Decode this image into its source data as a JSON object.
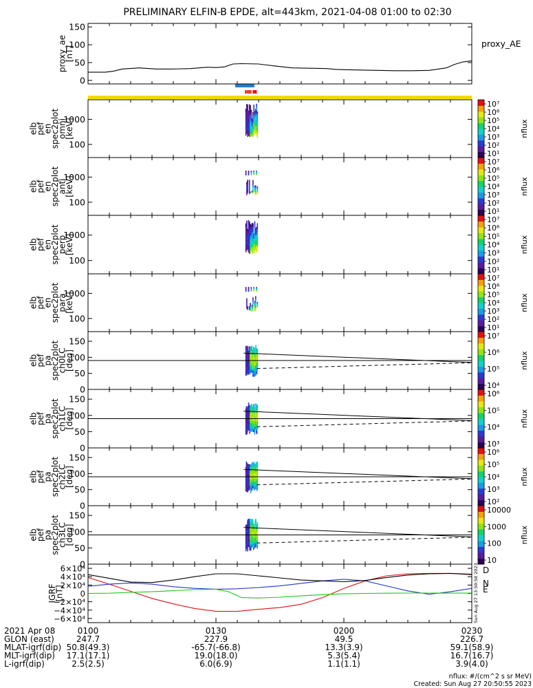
{
  "title": "PRELIMINARY ELFIN-B EPDE, alt=443km, 2021-04-08 01:00 to 02:30",
  "colors": {
    "yellow_bar": "#f5d800",
    "blue_bar": "#1e7fd6",
    "red_bar": "#ee1111",
    "grf_D": "#dd1111",
    "grf_N": "#2233cc",
    "grf_E": "#11cc11",
    "grf_mag": "#000000"
  },
  "colorscale": [
    "#2b005a",
    "#5a1b9a",
    "#2b3ad6",
    "#1a9be6",
    "#11d0d0",
    "#14d36a",
    "#8ee515",
    "#e5e812",
    "#f7a00a",
    "#e41010"
  ],
  "chart_data": [
    {
      "type": "line",
      "name": "proxy_ae",
      "ylabel": [
        "proxy_ae",
        "[nT]"
      ],
      "yticks": [
        "150",
        "100",
        "50",
        "0"
      ],
      "ylim": [
        0,
        150
      ],
      "series_label": "proxy_AE",
      "series": [
        {
          "name": "proxy_AE",
          "x": [
            0,
            4,
            6,
            8,
            12,
            16,
            20,
            24,
            26,
            28,
            30,
            32,
            34,
            36,
            40,
            44,
            48,
            52,
            56,
            58,
            60,
            64,
            68,
            72,
            76,
            80,
            84,
            86,
            88,
            90
          ],
          "y": [
            23,
            23,
            26,
            32,
            35,
            32,
            32,
            33,
            35,
            37,
            36,
            38,
            46,
            47,
            46,
            40,
            35,
            34,
            33,
            31,
            30,
            29,
            28,
            27,
            27,
            28,
            35,
            45,
            52,
            55
          ]
        }
      ]
    },
    {
      "type": "heatmap",
      "name": "omni",
      "ylabel": [
        "elb",
        "pef",
        "en",
        "spec2plot",
        "omni",
        "[keV]"
      ],
      "yticks": [
        "1000",
        "100"
      ],
      "cbar": {
        "ticks": [
          "10⁷",
          "10⁶",
          "10⁵",
          "10⁴",
          "10³",
          "10²",
          "10¹"
        ],
        "label": "nflux"
      }
    },
    {
      "type": "heatmap",
      "name": "anti",
      "ylabel": [
        "elb",
        "pef",
        "en",
        "spec2plot",
        "anti",
        "[keV]"
      ],
      "yticks": [
        "1000",
        "100"
      ],
      "cbar": {
        "ticks": [
          "10⁷",
          "10⁶",
          "10⁵",
          "10⁴",
          "10³",
          "10²",
          "10¹"
        ],
        "label": "nflux"
      }
    },
    {
      "type": "heatmap",
      "name": "perp",
      "ylabel": [
        "elb",
        "pef",
        "en",
        "spec2plot",
        "perp",
        "[keV]"
      ],
      "yticks": [
        "1000",
        "100"
      ],
      "cbar": {
        "ticks": [
          "10⁷",
          "10⁶",
          "10⁵",
          "10⁴",
          "10³",
          "10²",
          "10¹"
        ],
        "label": "nflux"
      }
    },
    {
      "type": "heatmap",
      "name": "para",
      "ylabel": [
        "elb",
        "pef",
        "en",
        "spec2plot",
        "para",
        "[keV]"
      ],
      "yticks": [
        "1000",
        "100"
      ],
      "cbar": {
        "ticks": [
          "10⁷",
          "10⁶",
          "10⁵",
          "10⁴",
          "10³",
          "10²",
          "10¹"
        ],
        "label": "nflux"
      }
    },
    {
      "type": "heatmap",
      "name": "ch0LC",
      "ylabel": [
        "elb",
        "pef",
        "pa",
        "spec2plot",
        "ch0LC",
        "[deg]"
      ],
      "yticks": [
        "150",
        "100",
        "50",
        "0"
      ],
      "ylim": [
        0,
        180
      ],
      "cbar": {
        "ticks": [
          "10⁷",
          "10⁶",
          "10⁵",
          "10⁴"
        ],
        "label": "nflux"
      }
    },
    {
      "type": "heatmap",
      "name": "ch1LC",
      "ylabel": [
        "elb",
        "pef",
        "pa",
        "spec2plot",
        "ch1LC",
        "[deg]"
      ],
      "yticks": [
        "150",
        "100",
        "50",
        "0"
      ],
      "ylim": [
        0,
        180
      ],
      "cbar": {
        "ticks": [
          "10⁶",
          "10⁵",
          "10⁴",
          "10³"
        ],
        "label": "nflux"
      }
    },
    {
      "type": "heatmap",
      "name": "ch2LC",
      "ylabel": [
        "elb",
        "pef",
        "pa",
        "spec2plot",
        "ch2LC",
        "[deg]"
      ],
      "yticks": [
        "150",
        "100",
        "50",
        "0"
      ],
      "ylim": [
        0,
        180
      ],
      "cbar": {
        "ticks": [
          "10⁶",
          "10⁵",
          "10⁴",
          "10³",
          "10²"
        ],
        "label": "nflux"
      }
    },
    {
      "type": "heatmap",
      "name": "ch3LC",
      "ylabel": [
        "elb",
        "pef",
        "pa",
        "spec2plot",
        "ch3LC",
        "[deg]"
      ],
      "yticks": [
        "150",
        "100",
        "50",
        "0"
      ],
      "ylim": [
        0,
        180
      ],
      "cbar": {
        "ticks": [
          "10000",
          "1000",
          "100",
          "10"
        ],
        "label": "nflux"
      }
    },
    {
      "type": "line",
      "name": "GRF",
      "ylabel": [
        "IGRF",
        "[nT]"
      ],
      "yticks": [
        "6×10⁴",
        "4×10⁴",
        "2×10⁴",
        "0",
        "−2×10⁴",
        "−4×10⁴",
        "−6×10⁴"
      ],
      "ylim": [
        -60000,
        60000
      ],
      "series": [
        {
          "name": "D",
          "x": [
            0,
            5,
            10,
            15,
            20,
            25,
            30,
            35,
            40,
            45,
            50,
            55,
            60,
            65,
            70,
            75,
            80,
            85,
            90
          ],
          "y": [
            38000,
            22000,
            5000,
            -12000,
            -25000,
            -36000,
            -43000,
            -43000,
            -38000,
            -34000,
            -26000,
            -10000,
            12000,
            30000,
            42000,
            47000,
            48000,
            48000,
            46000
          ]
        },
        {
          "name": "N",
          "x": [
            0,
            5,
            10,
            15,
            20,
            25,
            30,
            35,
            40,
            45,
            50,
            55,
            60,
            65,
            70,
            75,
            80,
            85,
            90
          ],
          "y": [
            17000,
            22000,
            25000,
            22000,
            16000,
            12000,
            10000,
            11000,
            14000,
            18000,
            24000,
            30000,
            34000,
            30000,
            18000,
            6000,
            -2000,
            4000,
            12000
          ]
        },
        {
          "name": "E",
          "x": [
            0,
            5,
            10,
            15,
            20,
            25,
            30,
            33,
            36,
            40,
            45,
            50,
            55,
            60,
            65,
            70,
            75,
            80,
            85,
            90
          ],
          "y": [
            0,
            500,
            2500,
            4000,
            6500,
            9000,
            10000,
            4000,
            -10000,
            -11000,
            -9000,
            -6000,
            -3000,
            -1000,
            0,
            500,
            800,
            800,
            700,
            600
          ]
        },
        {
          "name": "Mag",
          "x": [
            0,
            5,
            10,
            15,
            20,
            25,
            30,
            35,
            40,
            45,
            50,
            55,
            60,
            65,
            70,
            75,
            80,
            85,
            90
          ],
          "y": [
            45000,
            36000,
            27000,
            26000,
            32000,
            40000,
            47000,
            47000,
            42000,
            37000,
            32000,
            30000,
            28000,
            31000,
            38000,
            44000,
            47000,
            48000,
            45000
          ]
        }
      ],
      "letters": [
        "D",
        "N",
        "E"
      ]
    }
  ],
  "footer": {
    "rows": [
      {
        "label": "2021 Apr 08",
        "values": [
          "0100",
          "0130",
          "0200",
          "0230"
        ]
      },
      {
        "label": "GLON (east)",
        "values": [
          "247.7",
          "227.9",
          "49.5",
          "226.7"
        ]
      },
      {
        "label": "MLAT-igrf(dip)",
        "values": [
          "50.8(49.3)",
          "-65.7(-66.8)",
          "13.3(3.9)",
          "59.1(58.9)"
        ]
      },
      {
        "label": "MLT-igrf(dip)",
        "values": [
          "17.1(17.1)",
          "19.0(18.0)",
          "5.3(5.4)",
          "16.7(16.7)"
        ]
      },
      {
        "label": "L-igrf(dip)",
        "values": [
          "2.5(2.5)",
          "6.0(6.9)",
          "1.1(1.1)",
          "3.9(4.0)"
        ]
      }
    ],
    "units_note": "nflux: #/(cm^2 s sr MeV)",
    "created": "Created: Sun Aug 27 20:50:55 2023",
    "side_stamp": "Sun Aug 27 13:50:58 2023"
  }
}
